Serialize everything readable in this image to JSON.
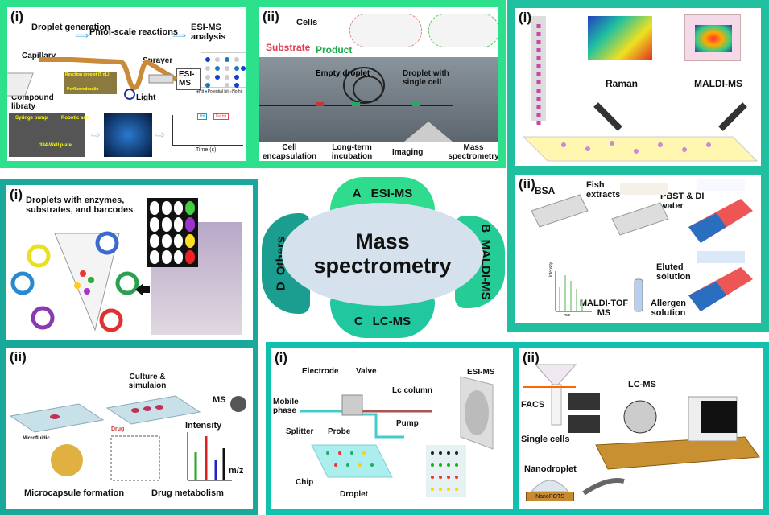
{
  "colors": {
    "a_border": "#2de08c",
    "b_border": "#1fbf9f",
    "c_border": "#10c2ad",
    "d_border": "#1aa89a",
    "center": "#d5e1ec",
    "petal_a": "#2fdc8e",
    "petal_b": "#26cc96",
    "petal_c": "#20c79f",
    "petal_d": "#1b9e90"
  },
  "center": {
    "line1": "Mass",
    "line2": "spectrometry"
  },
  "petals": {
    "a": {
      "letter": "A",
      "label": "ESI-MS"
    },
    "b": {
      "letter": "B",
      "label": "MALDI-MS"
    },
    "c": {
      "letter": "C",
      "label": "LC-MS"
    },
    "d": {
      "letter": "D",
      "label": "Others"
    }
  },
  "a1": {
    "tag": "(i)",
    "step1": "Droplet generation",
    "step2": "Pmol-scale reactions",
    "step3": "ESI-MS analysis",
    "capillary": "Capillary",
    "sprayer": "Sprayer",
    "esims": "ESI-MS",
    "compound": "Compound libraty",
    "light": "Light",
    "legend_hit": "Hit",
    "legend_potential": "Potential hit",
    "legend_nohit": "No hit",
    "photo_syringe": "Syringe pump",
    "photo_robotic": "Robotic arm",
    "photo_plate": "384-Well plate",
    "reaction_droplet": "Reaction droplet (5 nL)",
    "perfluoro": "Perfluorodecalin",
    "chart_hit": "Hit",
    "chart_nohit": "No hit",
    "chart_xlabel": "Time (s)"
  },
  "a2": {
    "tag": "(ii)",
    "cells": "Cells",
    "substrate": "Substrate",
    "product": "Product",
    "empty": "Empty droplet",
    "single": "Droplet with single cell",
    "step1": "Cell encapsulation",
    "step2": "Long-term incubation",
    "step3": "Imaging",
    "step4": "Mass spectrometry"
  },
  "b1": {
    "tag": "(i)",
    "raman": "Raman",
    "maldi": "MALDI-MS"
  },
  "b2": {
    "tag": "(ii)",
    "bsa": "BSA",
    "fish": "Fish extracts",
    "pbst": "PBST & DI water",
    "eluted": "Eluted solution",
    "allergen": "Allergen solution",
    "maldi_tof": "MALDI-TOF MS",
    "ylabel": "Intensity",
    "xlabel": "m/z"
  },
  "d1": {
    "tag": "(i)",
    "title": "Droplets with enzymes, substrates, and barcodes"
  },
  "d2": {
    "tag": "(ii)",
    "culture": "Culture & simulaion",
    "ms": "MS",
    "intensity": "Intensity",
    "mz": "m/z",
    "microfluidic": "Microfluidic",
    "drug": "Drug",
    "cap1": "Microcapsule formation",
    "cap2": "Drug metabolism"
  },
  "c1": {
    "tag": "(i)",
    "electrode": "Electrode",
    "valve": "Valve",
    "esims": "ESI-MS",
    "mobile": "Mobile phase",
    "lc": "Lc column",
    "splitter": "Splitter",
    "probe": "Probe",
    "pump": "Pump",
    "chip": "Chip",
    "droplet": "Droplet"
  },
  "c2": {
    "tag": "(ii)",
    "facs": "FACS",
    "lcms": "LC-MS",
    "single": "Single cells",
    "nanodroplet": "Nanodroplet",
    "nanopots": "NanoPOTS"
  }
}
